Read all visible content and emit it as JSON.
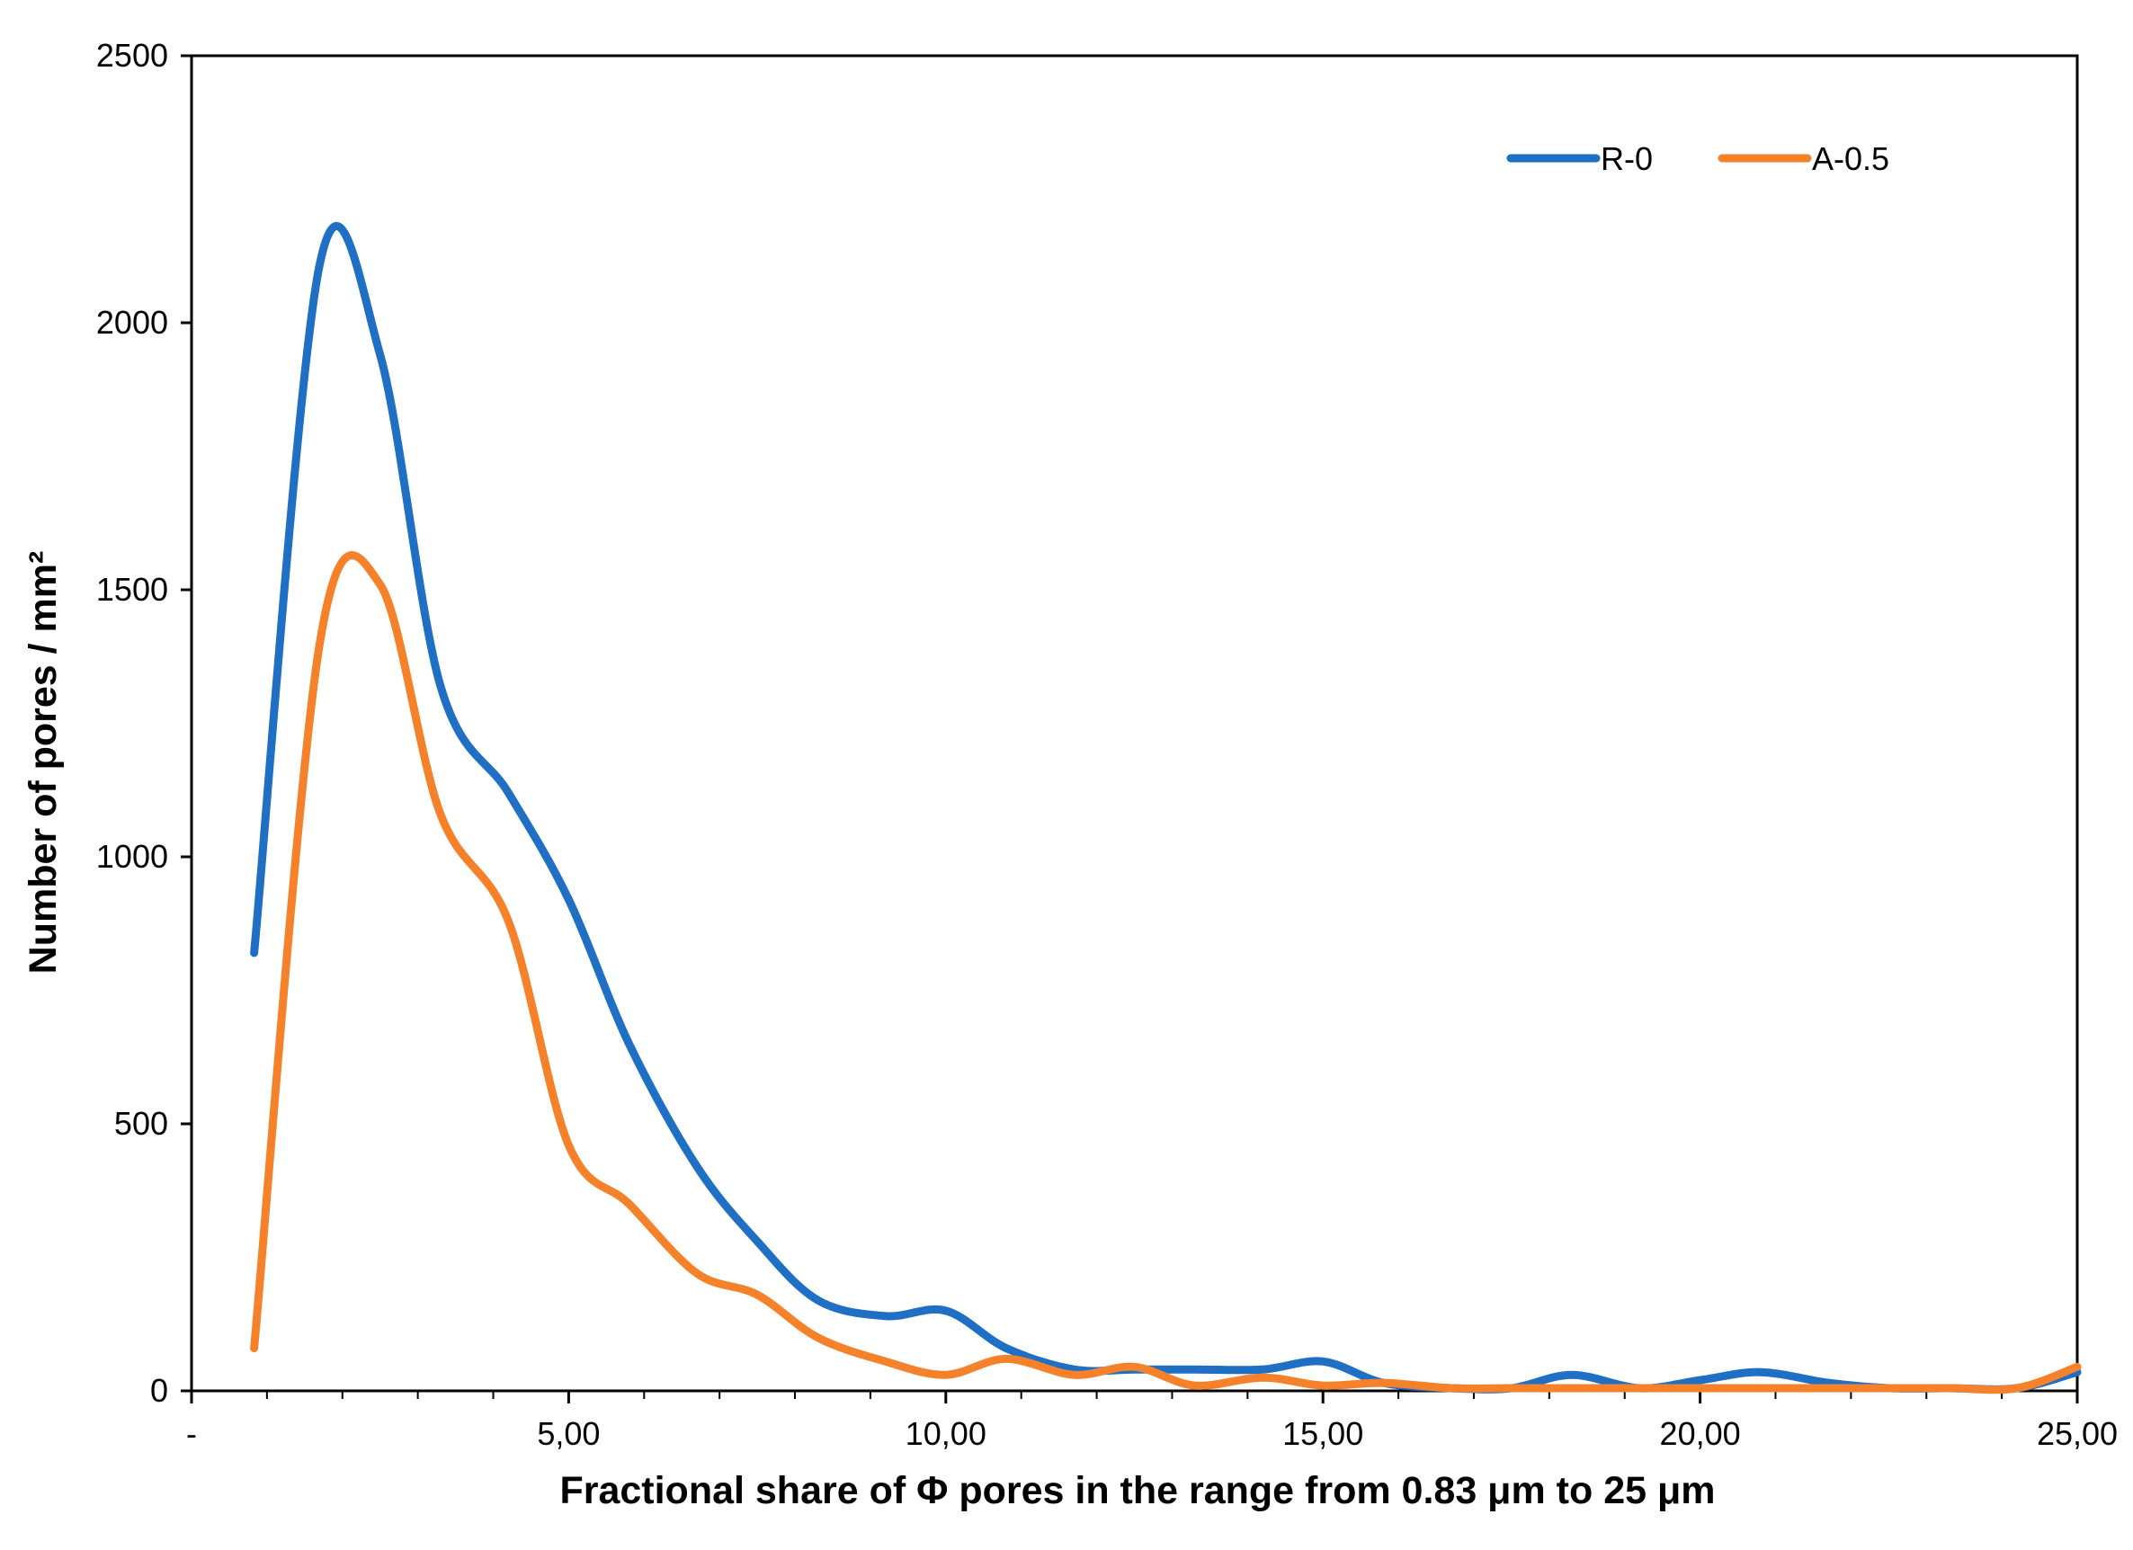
{
  "chart_data": {
    "type": "line",
    "title": "",
    "xlabel": "Fractional share of Φ pores in the range from 0.83 μm to 25 μm",
    "ylabel": "Number of pores / mm²",
    "xlim": [
      0,
      25
    ],
    "ylim": [
      0,
      2500
    ],
    "xticks": [
      0,
      5,
      10,
      15,
      20,
      25
    ],
    "xtick_labels": [
      "-",
      "5,00",
      "10,00",
      "15,00",
      "20,00",
      "25,00"
    ],
    "yticks": [
      0,
      500,
      1000,
      1500,
      2000,
      2500
    ],
    "ytick_labels": [
      "0",
      "500",
      "1000",
      "1500",
      "2000",
      "2500"
    ],
    "legend_position": "top-right",
    "grid": false,
    "series": [
      {
        "name": "R-0",
        "color": "#1f6fc5",
        "x": [
          0.83,
          1.7,
          2.5,
          3.3,
          4.2,
          5.0,
          5.8,
          6.7,
          7.5,
          8.3,
          9.2,
          10.0,
          10.8,
          11.7,
          12.5,
          13.3,
          14.2,
          15.0,
          15.8,
          16.7,
          17.5,
          18.3,
          19.2,
          20.0,
          20.8,
          21.7,
          22.5,
          23.3,
          24.2,
          25.0
        ],
        "values": [
          820,
          2110,
          1940,
          1320,
          1120,
          920,
          650,
          420,
          280,
          170,
          140,
          150,
          80,
          40,
          40,
          40,
          40,
          55,
          15,
          5,
          5,
          30,
          5,
          20,
          35,
          15,
          5,
          5,
          5,
          35
        ]
      },
      {
        "name": "A-0.5",
        "color": "#f5822a",
        "x": [
          0.83,
          1.7,
          2.5,
          3.3,
          4.2,
          5.0,
          5.8,
          6.7,
          7.5,
          8.3,
          9.2,
          10.0,
          10.8,
          11.7,
          12.5,
          13.3,
          14.2,
          15.0,
          15.8,
          16.7,
          17.5,
          18.3,
          19.2,
          20.0,
          20.8,
          21.7,
          22.5,
          23.3,
          24.2,
          25.0
        ],
        "values": [
          80,
          1400,
          1510,
          1080,
          880,
          460,
          350,
          220,
          180,
          100,
          55,
          30,
          60,
          30,
          45,
          10,
          25,
          10,
          15,
          5,
          5,
          5,
          5,
          5,
          5,
          5,
          5,
          5,
          5,
          45
        ]
      }
    ]
  }
}
